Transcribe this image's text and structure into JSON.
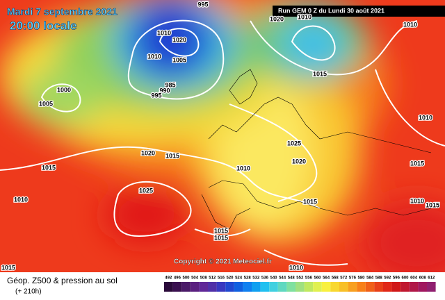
{
  "header": {
    "date": "Mardi 7 septembre 2021",
    "time": "20:00 locale",
    "run": "Run GEM 0 Z du Lundi 30 août 2021"
  },
  "copyright": "Copyright © 2021 Meteociel.fr",
  "legend": {
    "title": "Géop. Z500 & pression au sol",
    "lead": "(+ 210h)",
    "ticks": [
      492,
      496,
      500,
      504,
      508,
      512,
      516,
      520,
      524,
      528,
      532,
      536,
      540,
      544,
      548,
      552,
      556,
      560,
      564,
      568,
      572,
      576,
      580,
      584,
      588,
      592,
      596,
      600,
      604,
      608,
      612
    ]
  },
  "isobars": [
    995,
    1020,
    1010,
    1010,
    1005,
    985,
    990,
    995,
    1000,
    1005,
    1020,
    1015,
    1015,
    1025,
    1020,
    1010,
    1015,
    1010,
    1010,
    1025,
    1020,
    1010,
    1015,
    1015,
    1015,
    1010,
    1015,
    1010,
    1015,
    1010,
    1015
  ]
}
